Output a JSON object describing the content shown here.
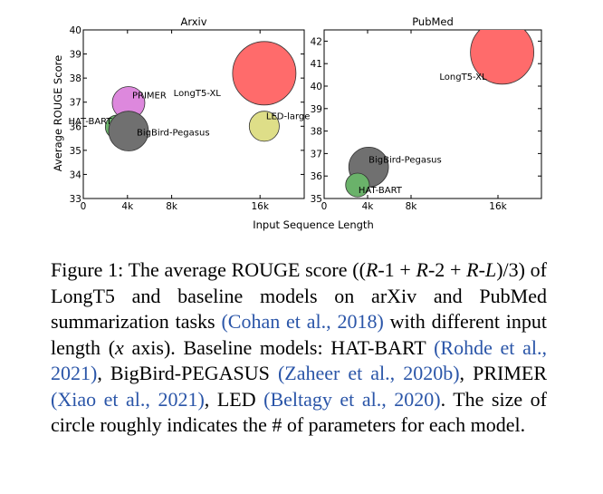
{
  "chart_data": [
    {
      "type": "scatter",
      "title": "Arxiv",
      "ylabel": "Average ROUGE Score",
      "xlabel": "Input Sequence Length",
      "xlim": [
        0,
        20000
      ],
      "ylim": [
        33,
        40
      ],
      "xticks": [
        0,
        4000,
        8000,
        16000
      ],
      "xtick_labels": [
        "0",
        "4k",
        "8k",
        "16k"
      ],
      "yticks": [
        33,
        34,
        35,
        36,
        37,
        38,
        39,
        40
      ],
      "ytick_labels": [
        "33",
        "34",
        "35",
        "36",
        "37",
        "38",
        "39",
        "40"
      ],
      "points": [
        {
          "label": "PRIMER",
          "x": 4096,
          "y": 36.97,
          "size": 0.22,
          "color": "#dd88dd"
        },
        {
          "label": "LongT5-XL",
          "x": 16384,
          "y": 38.2,
          "size": 1.0,
          "color": "#ff6b6b"
        },
        {
          "label": "LED-large",
          "x": 16384,
          "y": 36.0,
          "size": 0.18,
          "color": "#dede88"
        },
        {
          "label": "HAT-BART",
          "x": 3072,
          "y": 35.97,
          "size": 0.1,
          "color": "#6ab26a"
        },
        {
          "label": "BigBird-Pegasus",
          "x": 4096,
          "y": 35.8,
          "size": 0.35,
          "color": "#707070"
        }
      ]
    },
    {
      "type": "scatter",
      "title": "PubMed",
      "xlim": [
        0,
        20000
      ],
      "ylim": [
        35,
        42.5
      ],
      "xticks": [
        0,
        4000,
        8000,
        16000
      ],
      "xtick_labels": [
        "0",
        "4k",
        "8k",
        "16k"
      ],
      "yticks": [
        35,
        36,
        37,
        38,
        39,
        40,
        41,
        42
      ],
      "ytick_labels": [
        "35",
        "36",
        "37",
        "38",
        "39",
        "40",
        "41",
        "42"
      ],
      "points": [
        {
          "label": "LongT5-XL",
          "x": 16384,
          "y": 41.5,
          "size": 1.0,
          "color": "#ff6b6b"
        },
        {
          "label": "BigBird-Pegasus",
          "x": 4096,
          "y": 36.4,
          "size": 0.35,
          "color": "#707070"
        },
        {
          "label": "HAT-BART",
          "x": 3072,
          "y": 35.6,
          "size": 0.1,
          "color": "#6ab26a"
        }
      ]
    }
  ],
  "caption": {
    "s1": "Figure 1: The average ROUGE score ((",
    "s2": "R",
    "s3": "-1 + ",
    "s4": "R",
    "s5": "-2 + ",
    "s6": "R",
    "s7": "-",
    "s8": "L",
    "s9": ")/3) of LongT5 and baseline models on arXiv and PubMed summarization tasks ",
    "cite1": "(Cohan et al., 2018)",
    "s10": " with different input length (",
    "s11": "x",
    "s12": " axis). Baseline models: HAT-BART ",
    "cite2": "(Rohde et al., 2021)",
    "s13": ", BigBird-PEGASUS ",
    "cite3": "(Zaheer et al., 2020b)",
    "s14": ", PRIMER ",
    "cite4": "(Xiao et al., 2021)",
    "s15": ", LED ",
    "cite5": "(Beltagy et al., 2020)",
    "s16": ". The size of circle roughly indicates the # of parameters for each model."
  }
}
